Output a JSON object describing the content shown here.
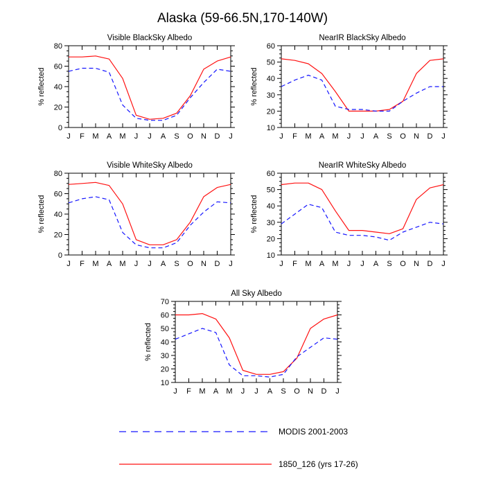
{
  "figure": {
    "title": "Alaska (59-66.5N,170-140W)"
  },
  "colors": {
    "modis": "#1515ff",
    "model": "#ff1010"
  },
  "legend": {
    "modis_label": "MODIS 2001-2003",
    "model_label": "1850_126 (yrs 17-26)"
  },
  "chart_data": [
    {
      "type": "line",
      "title": "Visible BlackSky Albedo",
      "ylabel": "% reflected",
      "xlabel": "",
      "categories": [
        "J",
        "F",
        "M",
        "A",
        "M",
        "J",
        "J",
        "A",
        "S",
        "O",
        "N",
        "D",
        "J"
      ],
      "ylim": [
        0,
        80
      ],
      "yticks": [
        0,
        20,
        40,
        60,
        80
      ],
      "series": [
        {
          "name": "1850_126 (yrs 17-26)",
          "style": "solid",
          "values": [
            69,
            69,
            70,
            67,
            48,
            12,
            8,
            9,
            14,
            31,
            57,
            65,
            69
          ]
        },
        {
          "name": "MODIS 2001-2003",
          "style": "dashed",
          "values": [
            55,
            58,
            58,
            54,
            22,
            9,
            7,
            7,
            12,
            29,
            44,
            57,
            55
          ]
        }
      ]
    },
    {
      "type": "line",
      "title": "NearIR BlackSky Albedo",
      "ylabel": "% reflected",
      "xlabel": "",
      "categories": [
        "J",
        "F",
        "M",
        "A",
        "M",
        "J",
        "J",
        "A",
        "S",
        "O",
        "N",
        "D",
        "J"
      ],
      "ylim": [
        10,
        60
      ],
      "yticks": [
        10,
        20,
        30,
        40,
        50,
        60
      ],
      "series": [
        {
          "name": "1850_126 (yrs 17-26)",
          "style": "solid",
          "values": [
            52,
            51,
            49,
            43,
            32,
            20,
            20,
            20,
            21,
            26,
            43,
            51,
            52
          ]
        },
        {
          "name": "MODIS 2001-2003",
          "style": "dashed",
          "values": [
            35,
            39,
            42,
            39,
            23,
            21,
            21,
            20,
            20,
            26,
            31,
            35,
            35
          ]
        }
      ]
    },
    {
      "type": "line",
      "title": "Visible WhiteSky Albedo",
      "ylabel": "% reflected",
      "xlabel": "",
      "categories": [
        "J",
        "F",
        "M",
        "A",
        "M",
        "J",
        "J",
        "A",
        "S",
        "O",
        "N",
        "D",
        "J"
      ],
      "ylim": [
        0,
        80
      ],
      "yticks": [
        0,
        20,
        40,
        60,
        80
      ],
      "series": [
        {
          "name": "1850_126 (yrs 17-26)",
          "style": "solid",
          "values": [
            69,
            70,
            71,
            68,
            50,
            15,
            10,
            10,
            15,
            32,
            57,
            66,
            69
          ]
        },
        {
          "name": "MODIS 2001-2003",
          "style": "dashed",
          "values": [
            51,
            55,
            57,
            54,
            22,
            10,
            7,
            7,
            12,
            29,
            42,
            52,
            51
          ]
        }
      ]
    },
    {
      "type": "line",
      "title": "NearIR WhiteSky Albedo",
      "ylabel": "% reflected",
      "xlabel": "",
      "categories": [
        "J",
        "F",
        "M",
        "A",
        "M",
        "J",
        "J",
        "A",
        "S",
        "O",
        "N",
        "D",
        "J"
      ],
      "ylim": [
        10,
        60
      ],
      "yticks": [
        10,
        20,
        30,
        40,
        50,
        60
      ],
      "series": [
        {
          "name": "1850_126 (yrs 17-26)",
          "style": "solid",
          "values": [
            53,
            54,
            54,
            50,
            37,
            25,
            25,
            24,
            23,
            26,
            44,
            51,
            53
          ]
        },
        {
          "name": "MODIS 2001-2003",
          "style": "dashed",
          "values": [
            29,
            35,
            41,
            39,
            24,
            22,
            22,
            21,
            19,
            24,
            27,
            30,
            29
          ]
        }
      ]
    },
    {
      "type": "line",
      "title": "All Sky Albedo",
      "ylabel": "% reflected",
      "xlabel": "",
      "categories": [
        "J",
        "F",
        "M",
        "A",
        "M",
        "J",
        "J",
        "A",
        "S",
        "O",
        "N",
        "D",
        "J"
      ],
      "ylim": [
        10,
        70
      ],
      "yticks": [
        10,
        20,
        30,
        40,
        50,
        60,
        70
      ],
      "series": [
        {
          "name": "1850_126 (yrs 17-26)",
          "style": "solid",
          "values": [
            60,
            60,
            61,
            57,
            43,
            19,
            16,
            16,
            18,
            28,
            50,
            57,
            60
          ]
        },
        {
          "name": "MODIS 2001-2003",
          "style": "dashed",
          "values": [
            42,
            46,
            50,
            47,
            23,
            15,
            15,
            14,
            16,
            29,
            36,
            43,
            42
          ]
        }
      ]
    }
  ]
}
